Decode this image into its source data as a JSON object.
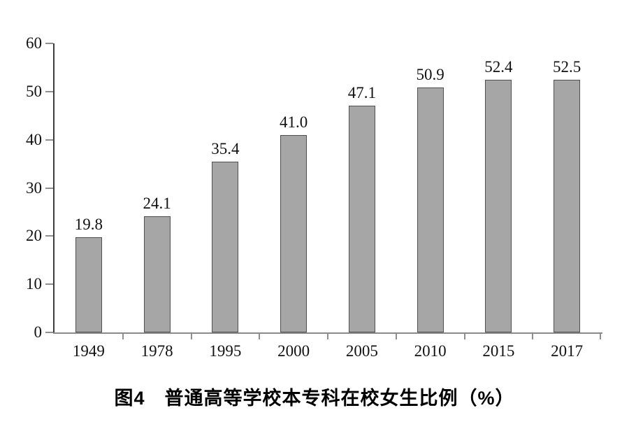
{
  "page": {
    "background": "#ffffff"
  },
  "chart_data": {
    "type": "bar",
    "title": "图4　普通高等学校本专科在校女生比例（%）",
    "categories": [
      "1949",
      "1978",
      "1995",
      "2000",
      "2005",
      "2010",
      "2015",
      "2017"
    ],
    "values": [
      19.8,
      24.1,
      35.4,
      41.0,
      47.1,
      50.9,
      52.4,
      52.5
    ],
    "value_labels": [
      "19.8",
      "24.1",
      "35.4",
      "41.0",
      "47.1",
      "50.9",
      "52.4",
      "52.5"
    ],
    "xlabel": "",
    "ylabel": "",
    "ylim": [
      0,
      60
    ],
    "yticks": [
      0,
      10,
      20,
      30,
      40,
      50,
      60
    ],
    "grid": false,
    "legend": "none",
    "colors": {
      "bar_fill": "#a6a6a6",
      "bar_border": "#4f4f4f",
      "y_axis": "#3d3d3d",
      "x_axis": "#8a8a8a",
      "ticks": "#8f8f8f",
      "labels": "#111111",
      "background": "#ffffff"
    }
  }
}
